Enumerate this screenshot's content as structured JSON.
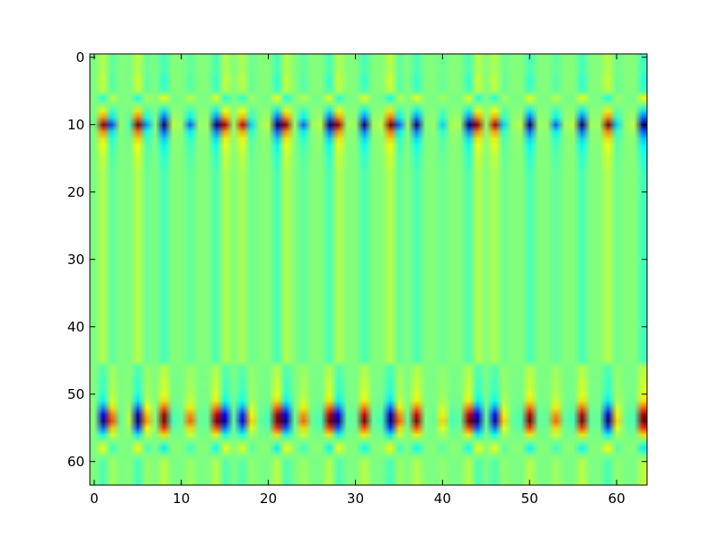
{
  "chart_data": {
    "type": "heatmap",
    "title": "",
    "xlabel": "",
    "ylabel": "",
    "colormap": "jet",
    "interpolation": "bilinear",
    "grid": false,
    "legend": "none",
    "rows": 64,
    "cols": 64,
    "xlim": [
      -0.5,
      63.5
    ],
    "ylim": [
      63.5,
      -0.5
    ],
    "x_ticks": [
      0,
      10,
      20,
      30,
      40,
      50,
      60
    ],
    "y_ticks": [
      0,
      10,
      20,
      30,
      40,
      50,
      60
    ],
    "x_tick_labels": [
      "0",
      "10",
      "20",
      "30",
      "40",
      "50",
      "60"
    ],
    "y_tick_labels": [
      "0",
      "10",
      "20",
      "30",
      "40",
      "50",
      "60"
    ],
    "column_profile": [
      -0.02,
      0.85,
      -0.55,
      0.05,
      -0.1,
      0.95,
      -0.4,
      0.0,
      -1.0,
      0.1,
      0.05,
      -0.5,
      0.05,
      0.05,
      -0.9,
      0.8,
      0.05,
      0.75,
      -0.3,
      0.05,
      0.1,
      -1.0,
      0.85,
      0.05,
      -0.5,
      0.05,
      0.1,
      -0.95,
      0.85,
      0.05,
      0.05,
      -0.9,
      0.05,
      0.1,
      0.95,
      -0.5,
      0.05,
      -0.9,
      0.0,
      0.05,
      -0.3,
      0.1,
      0.05,
      -0.9,
      0.85,
      0.05,
      0.8,
      -0.3,
      0.05,
      0.1,
      -0.95,
      0.05,
      0.05,
      -0.5,
      0.05,
      0.1,
      -0.95,
      0.05,
      0.05,
      0.9,
      -0.3,
      0.05,
      0.1,
      -1.0
    ],
    "row_profile": [
      0.02,
      0.0,
      0.0,
      0.05,
      0.05,
      0.0,
      -0.35,
      -0.1,
      0.2,
      0.45,
      1.0,
      0.45,
      0.25,
      0.15,
      0.1,
      0.05,
      0.05,
      0.0,
      0.0,
      0.0,
      0.0,
      0.0,
      0.0,
      0.0,
      0.0,
      0.0,
      0.0,
      0.0,
      0.0,
      0.0,
      0.0,
      0.0,
      0.0,
      0.0,
      0.0,
      0.0,
      0.0,
      0.0,
      0.0,
      0.0,
      0.0,
      0.0,
      0.0,
      0.0,
      0.0,
      0.0,
      0.0,
      0.0,
      0.05,
      0.05,
      0.1,
      0.2,
      0.45,
      0.8,
      1.0,
      0.55,
      0.2,
      -0.15,
      -0.4,
      -0.15,
      0.0,
      0.0,
      0.0,
      0.02
    ],
    "bands": [
      {
        "row_start": 0,
        "row_end": 19,
        "scale": 1.0
      },
      {
        "row_start": 46,
        "row_end": 63,
        "scale": -1.0
      }
    ],
    "band_bleed": 0.12,
    "value_range": [
      -1,
      1
    ]
  }
}
